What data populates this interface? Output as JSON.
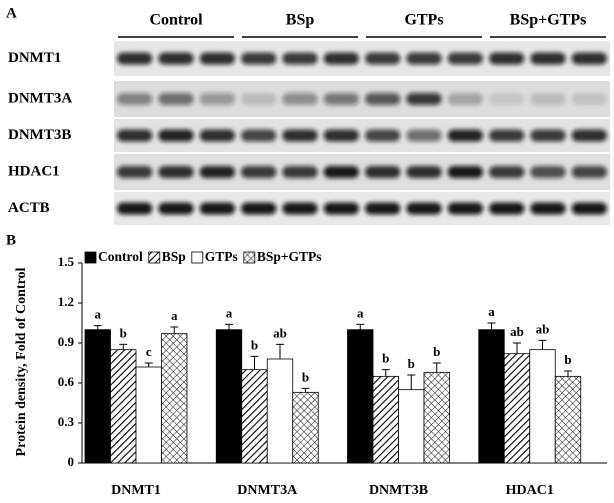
{
  "panel_a": {
    "label": "A",
    "groups": [
      "Control",
      "BSp",
      "GTPs",
      "BSp+GTPs"
    ],
    "rows": [
      "DNMT1",
      "DNMT3A",
      "DNMT3B",
      "HDAC1",
      "ACTB"
    ]
  },
  "chart_data": {
    "type": "bar",
    "panel_label": "B",
    "ylabel": "Protein density, Fold of Control",
    "categories": [
      "DNMT1",
      "DNMT3A",
      "DNMT3B",
      "HDAC1"
    ],
    "series": [
      {
        "name": "Control",
        "color": "#000000",
        "pattern": "solid",
        "values": [
          1.0,
          1.0,
          1.0,
          1.0
        ],
        "errors": [
          0.03,
          0.04,
          0.04,
          0.05
        ],
        "letters": [
          "a",
          "a",
          "a",
          "a"
        ]
      },
      {
        "name": "BSp",
        "color": "#000000",
        "pattern": "diagonal",
        "values": [
          0.85,
          0.7,
          0.65,
          0.82
        ],
        "errors": [
          0.04,
          0.1,
          0.05,
          0.08
        ],
        "letters": [
          "b",
          "b",
          "b",
          "ab"
        ]
      },
      {
        "name": "GTPs",
        "color": "#000000",
        "pattern": "open",
        "values": [
          0.72,
          0.78,
          0.55,
          0.85
        ],
        "errors": [
          0.03,
          0.11,
          0.11,
          0.07
        ],
        "letters": [
          "c",
          "ab",
          "b",
          "ab"
        ]
      },
      {
        "name": "BSp+GTPs",
        "color": "#000000",
        "pattern": "crosshatch",
        "values": [
          0.97,
          0.53,
          0.68,
          0.65
        ],
        "errors": [
          0.05,
          0.03,
          0.07,
          0.04
        ],
        "letters": [
          "a",
          "b",
          "b",
          "b"
        ]
      }
    ],
    "ylim": [
      0,
      1.5
    ],
    "yticks": [
      0,
      0.3,
      0.6,
      0.9,
      1.2,
      1.5
    ],
    "grid": false,
    "legend": "top"
  }
}
